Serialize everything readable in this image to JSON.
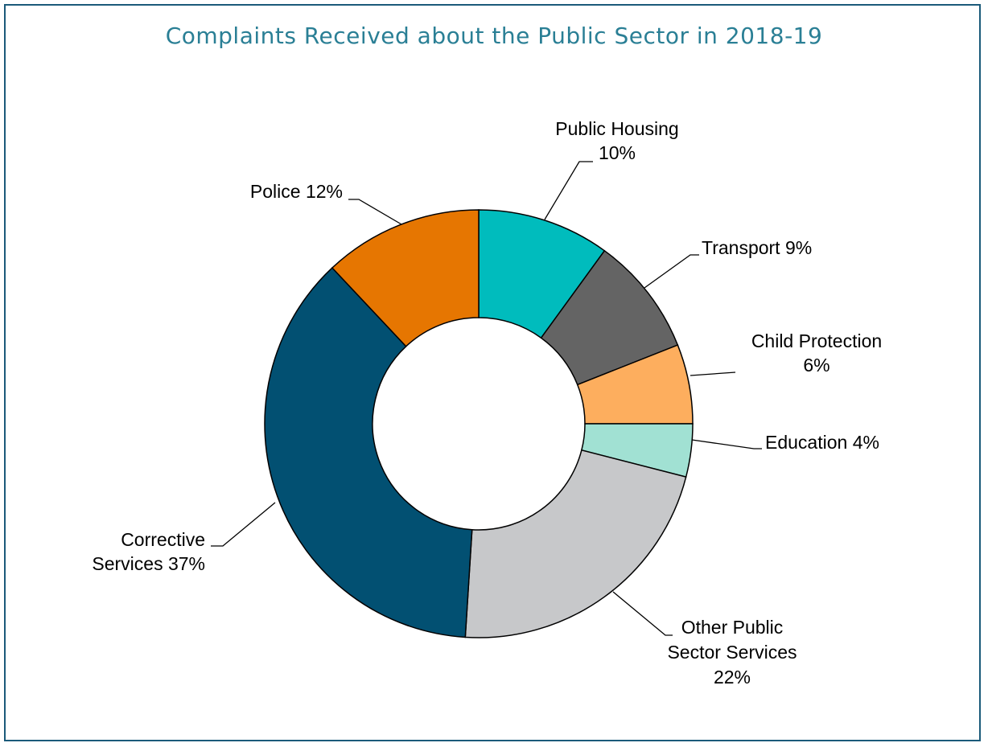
{
  "chart_data": {
    "type": "pie",
    "donut": true,
    "title": "Complaints Received about the Public Sector in 2018-19",
    "unit": "%",
    "slices": [
      {
        "name": "Public Housing",
        "value": 10,
        "color": "#00bcbd",
        "label_lines": [
          "Public Housing",
          "10%"
        ]
      },
      {
        "name": "Transport",
        "value": 9,
        "color": "#646464",
        "label_lines": [
          "Transport 9%"
        ]
      },
      {
        "name": "Child Protection",
        "value": 6,
        "color": "#fdae5e",
        "label_lines": [
          "Child Protection",
          "6%"
        ]
      },
      {
        "name": "Education",
        "value": 4,
        "color": "#a1e1d3",
        "label_lines": [
          "Education 4%"
        ]
      },
      {
        "name": "Other Public Sector Services",
        "value": 22,
        "color": "#c7c8ca",
        "label_lines": [
          "Other Public",
          "Sector Services",
          "22%"
        ]
      },
      {
        "name": "Corrective Services",
        "value": 37,
        "color": "#025072",
        "label_lines": [
          "Corrective",
          "Services 37%"
        ]
      },
      {
        "name": "Police",
        "value": 12,
        "color": "#e67601",
        "label_lines": [
          "Police 12%"
        ]
      }
    ],
    "legend": "none",
    "colors": {
      "frame": "#1b5a7a",
      "title": "#2a7f95"
    }
  }
}
